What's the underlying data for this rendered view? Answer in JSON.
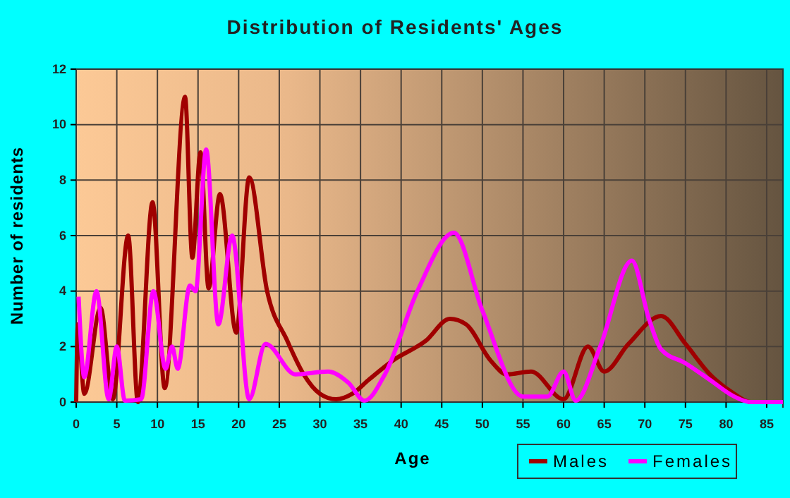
{
  "chart_data": {
    "type": "line",
    "title": "Distribution of Residents' Ages",
    "xlabel": "Age",
    "ylabel": "Number of residents",
    "xlim": [
      0,
      87
    ],
    "xticks": [
      0,
      5,
      10,
      15,
      20,
      25,
      30,
      35,
      40,
      45,
      50,
      55,
      60,
      65,
      70,
      75,
      80,
      85
    ],
    "ylim": [
      0,
      12
    ],
    "yticks": [
      0,
      2,
      4,
      6,
      8,
      10,
      12
    ],
    "grid": true,
    "legend": "bottom right",
    "marker": "none",
    "line_style": "solid",
    "series": [
      {
        "name": "Males",
        "color": "#a00000",
        "x": [
          0,
          0.2,
          1,
          3,
          4.5,
          6.4,
          7.6,
          9.4,
          10.9,
          13.4,
          14.3,
          15.3,
          16.3,
          17.7,
          19.7,
          21.3,
          23.5,
          26,
          28,
          30,
          32,
          34,
          36,
          39,
          43,
          46,
          48,
          51,
          53,
          56,
          60,
          63,
          65,
          68,
          72,
          75,
          78,
          81,
          83,
          87
        ],
        "values": [
          0,
          2.8,
          0.3,
          3.4,
          0.1,
          6,
          0,
          7.2,
          0.5,
          11,
          5.2,
          9,
          4.1,
          7.5,
          2.5,
          8.1,
          4,
          2.2,
          1,
          0.3,
          0.1,
          0.3,
          0.8,
          1.5,
          2.2,
          3,
          2.8,
          1.5,
          1,
          1.1,
          0.1,
          2,
          1.1,
          2.1,
          3.1,
          2.1,
          1,
          0.3,
          0,
          0
        ]
      },
      {
        "name": "Females",
        "color": "#ff00ff",
        "x": [
          0.3,
          1,
          2.5,
          4,
          5,
          6,
          8,
          9.5,
          11,
          11.8,
          12.5,
          14,
          14.7,
          16,
          17.5,
          19.2,
          21.3,
          23.3,
          27,
          31,
          33.5,
          35.5,
          38,
          42,
          46.5,
          50,
          55,
          58,
          60,
          61.5,
          64.5,
          68.4,
          70.5,
          72,
          75,
          78,
          81,
          83,
          87
        ],
        "values": [
          3.8,
          0.9,
          4,
          0.1,
          2,
          0.05,
          0.1,
          4,
          1.2,
          2,
          1.2,
          4.2,
          4,
          9.1,
          2.8,
          6,
          0.1,
          2.1,
          1,
          1.1,
          0.7,
          0.05,
          1,
          4,
          6.1,
          3.3,
          0.2,
          0.2,
          1.1,
          0.05,
          2,
          5.1,
          3,
          1.9,
          1.4,
          0.8,
          0.2,
          0,
          0
        ]
      }
    ]
  }
}
